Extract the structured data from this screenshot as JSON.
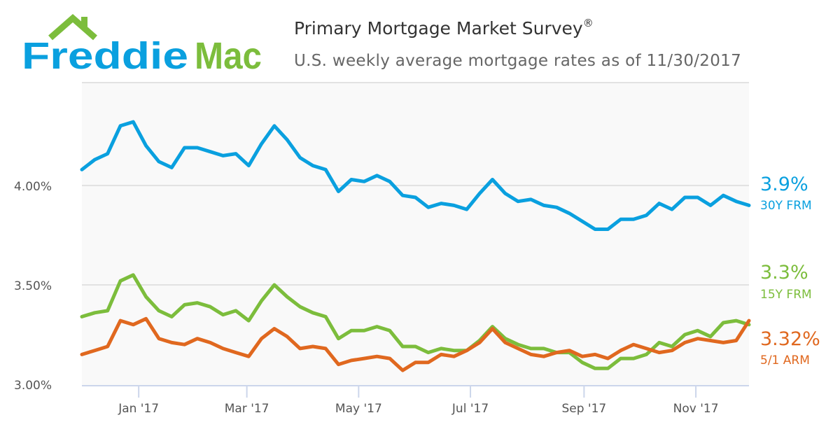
{
  "logo": {
    "part1": "Freddie",
    "part2": "Mac"
  },
  "header": {
    "title": "Primary Mortgage Market Survey",
    "title_mark": "®",
    "subtitle": "U.S. weekly average mortgage rates as of 11/30/2017"
  },
  "colors": {
    "blue": "#0aa0df",
    "green": "#7cbd3c",
    "orange": "#e0681f",
    "grid": "#e2e2e2",
    "axis": "#ccd6eb",
    "plot_bg": "#f9f9f9"
  },
  "chart_data": {
    "type": "line",
    "title": "Primary Mortgage Market Survey",
    "subtitle": "U.S. weekly average mortgage rates as of 11/30/2017",
    "x_start": "2016-12-01",
    "x_interval": "weekly",
    "x_ticks": [
      "Jan '17",
      "Mar '17",
      "May '17",
      "Jul '17",
      "Sep '17",
      "Nov '17"
    ],
    "y_ticks": [
      "3.00%",
      "3.50%",
      "4.00%"
    ],
    "y_tick_values": [
      3.0,
      3.5,
      4.0
    ],
    "ylim": [
      2.99,
      4.52
    ],
    "grid": true,
    "series": [
      {
        "name": "30Y FRM",
        "end_label": "3.9%",
        "color": "#0aa0df",
        "values": [
          4.08,
          4.13,
          4.16,
          4.3,
          4.32,
          4.2,
          4.12,
          4.09,
          4.19,
          4.19,
          4.17,
          4.15,
          4.16,
          4.1,
          4.21,
          4.3,
          4.23,
          4.14,
          4.1,
          4.08,
          3.97,
          4.03,
          4.02,
          4.05,
          4.02,
          3.95,
          3.94,
          3.89,
          3.91,
          3.9,
          3.88,
          3.96,
          4.03,
          3.96,
          3.92,
          3.93,
          3.9,
          3.89,
          3.86,
          3.82,
          3.78,
          3.78,
          3.83,
          3.83,
          3.85,
          3.91,
          3.88,
          3.94,
          3.94,
          3.9,
          3.95,
          3.92,
          3.9
        ]
      },
      {
        "name": "15Y FRM",
        "end_label": "3.3%",
        "color": "#7cbd3c",
        "values": [
          3.34,
          3.36,
          3.37,
          3.52,
          3.55,
          3.44,
          3.37,
          3.34,
          3.4,
          3.41,
          3.39,
          3.35,
          3.37,
          3.32,
          3.42,
          3.5,
          3.44,
          3.39,
          3.36,
          3.34,
          3.23,
          3.27,
          3.27,
          3.29,
          3.27,
          3.19,
          3.19,
          3.16,
          3.18,
          3.17,
          3.17,
          3.22,
          3.29,
          3.23,
          3.2,
          3.18,
          3.18,
          3.16,
          3.16,
          3.11,
          3.08,
          3.08,
          3.13,
          3.13,
          3.15,
          3.21,
          3.19,
          3.25,
          3.27,
          3.24,
          3.31,
          3.32,
          3.3
        ]
      },
      {
        "name": "5/1 ARM",
        "end_label": "3.32%",
        "color": "#e0681f",
        "values": [
          3.15,
          3.17,
          3.19,
          3.32,
          3.3,
          3.33,
          3.23,
          3.21,
          3.2,
          3.23,
          3.21,
          3.18,
          3.16,
          3.14,
          3.23,
          3.28,
          3.24,
          3.18,
          3.19,
          3.18,
          3.1,
          3.12,
          3.13,
          3.14,
          3.13,
          3.07,
          3.11,
          3.11,
          3.15,
          3.14,
          3.17,
          3.21,
          3.28,
          3.21,
          3.18,
          3.15,
          3.14,
          3.16,
          3.17,
          3.14,
          3.15,
          3.13,
          3.17,
          3.2,
          3.18,
          3.16,
          3.17,
          3.21,
          3.23,
          3.22,
          3.21,
          3.22,
          3.32
        ]
      }
    ]
  }
}
